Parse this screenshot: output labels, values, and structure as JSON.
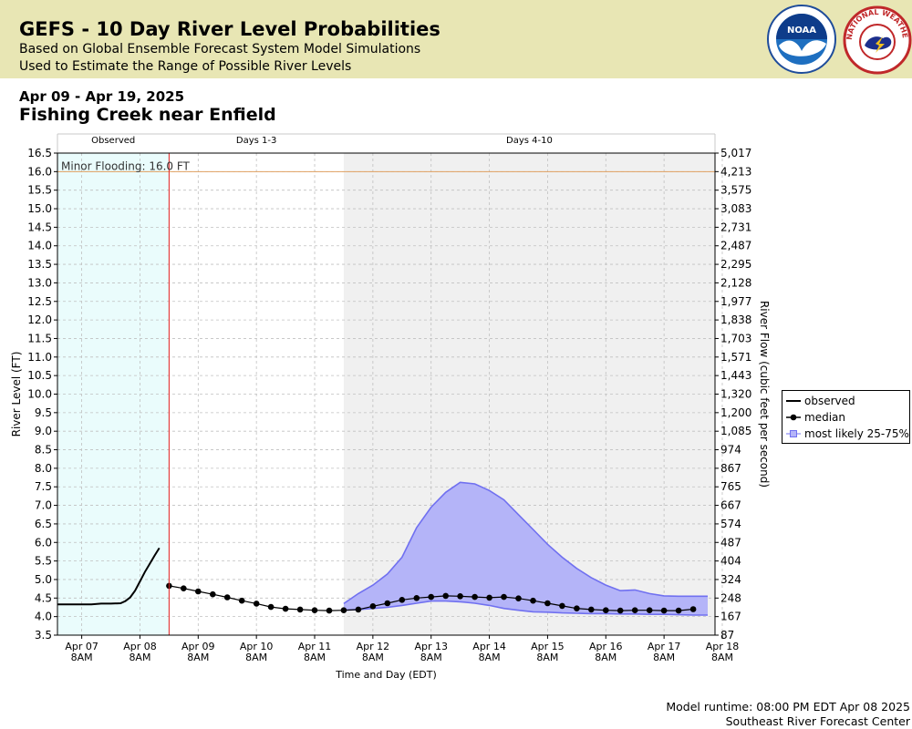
{
  "banner": {
    "title": "GEFS - 10 Day River Level Probabilities",
    "subtitle1": "Based on Global Ensemble Forecast System Model Simulations",
    "subtitle2": "Used to Estimate the Range of Possible River Levels",
    "noaa_logo_text": "NOAA",
    "nws_logo_text": "NATIONAL WEATHER SERVICE"
  },
  "date_range": "Apr 09 - Apr 19, 2025",
  "station": "Fishing Creek near Enfield",
  "legend": {
    "observed": "observed",
    "median": "median",
    "range": "most likely 25-75%"
  },
  "footer": {
    "runtime": "Model runtime: 08:00 PM EDT Apr 08 2025",
    "center": "Southeast River Forecast Center"
  },
  "colors": {
    "observed_bg": "#eafcfc",
    "days4_bg": "#f0f0f0",
    "flood_line": "#e0a060",
    "now_line": "#e02020",
    "band_fill": "#b4b4f8",
    "band_edge": "#7070f0",
    "line": "#000000"
  },
  "chart_data": {
    "type": "area",
    "xlabel": "Time and Day (EDT)",
    "ylabel": "River Level (FT)",
    "ylabel_right": "River Flow (cubic feet per second)",
    "ylim": [
      3.5,
      16.5
    ],
    "xlim": [
      "2025-04-06 22:00",
      "2025-04-18 05:00"
    ],
    "grid": true,
    "legend_position": "right",
    "regions": [
      {
        "label": "Observed",
        "start": "2025-04-06 22:00",
        "end": "2025-04-08 20:00"
      },
      {
        "label": "Days 1-3",
        "start": "2025-04-08 20:00",
        "end": "2025-04-11 20:00"
      },
      {
        "label": "Days 4-10",
        "start": "2025-04-11 20:00",
        "end": "2025-04-18 05:00"
      }
    ],
    "flood_stage": {
      "label": "Minor Flooding: 16.0 FT",
      "value": 16.0
    },
    "y_ticks": [
      3.5,
      4.0,
      4.5,
      5.0,
      5.5,
      6.0,
      6.5,
      7.0,
      7.5,
      8.0,
      8.5,
      9.0,
      9.5,
      10.0,
      10.5,
      11.0,
      11.5,
      12.0,
      12.5,
      13.0,
      13.5,
      14.0,
      14.5,
      15.0,
      15.5,
      16.0,
      16.5
    ],
    "right_ticks": [
      "87",
      "167",
      "248",
      "324",
      "404",
      "487",
      "574",
      "667",
      "765",
      "867",
      "974",
      "1,085",
      "1,200",
      "1,320",
      "1,443",
      "1,571",
      "1,703",
      "1,838",
      "1,977",
      "2,128",
      "2,295",
      "2,487",
      "2,731",
      "3,083",
      "3,575",
      "4,213",
      "5,017"
    ],
    "x_ticks": [
      {
        "t": "2025-04-07 08:00",
        "label1": "Apr 07",
        "label2": "8AM"
      },
      {
        "t": "2025-04-08 08:00",
        "label1": "Apr 08",
        "label2": "8AM"
      },
      {
        "t": "2025-04-09 08:00",
        "label1": "Apr 09",
        "label2": "8AM"
      },
      {
        "t": "2025-04-10 08:00",
        "label1": "Apr 10",
        "label2": "8AM"
      },
      {
        "t": "2025-04-11 08:00",
        "label1": "Apr 11",
        "label2": "8AM"
      },
      {
        "t": "2025-04-12 08:00",
        "label1": "Apr 12",
        "label2": "8AM"
      },
      {
        "t": "2025-04-13 08:00",
        "label1": "Apr 13",
        "label2": "8AM"
      },
      {
        "t": "2025-04-14 08:00",
        "label1": "Apr 14",
        "label2": "8AM"
      },
      {
        "t": "2025-04-15 08:00",
        "label1": "Apr 15",
        "label2": "8AM"
      },
      {
        "t": "2025-04-16 08:00",
        "label1": "Apr 16",
        "label2": "8AM"
      },
      {
        "t": "2025-04-17 08:00",
        "label1": "Apr 17",
        "label2": "8AM"
      },
      {
        "t": "2025-04-18 08:00",
        "label1": "Apr 18",
        "label2": "8AM"
      }
    ],
    "series": [
      {
        "name": "observed",
        "x": [
          "2025-04-06 22:00",
          "2025-04-07 08:00",
          "2025-04-07 12:00",
          "2025-04-07 16:00",
          "2025-04-07 20:00",
          "2025-04-08 00:00",
          "2025-04-08 02:00",
          "2025-04-08 04:00",
          "2025-04-08 06:00",
          "2025-04-08 08:00",
          "2025-04-08 10:00",
          "2025-04-08 12:00",
          "2025-04-08 14:00",
          "2025-04-08 16:00"
        ],
        "y": [
          4.33,
          4.33,
          4.33,
          4.35,
          4.35,
          4.36,
          4.42,
          4.52,
          4.7,
          4.95,
          5.2,
          5.42,
          5.64,
          5.85
        ]
      },
      {
        "name": "median",
        "x": [
          "2025-04-08 20:00",
          "2025-04-09 02:00",
          "2025-04-09 08:00",
          "2025-04-09 14:00",
          "2025-04-09 20:00",
          "2025-04-10 02:00",
          "2025-04-10 08:00",
          "2025-04-10 14:00",
          "2025-04-10 20:00",
          "2025-04-11 02:00",
          "2025-04-11 08:00",
          "2025-04-11 14:00",
          "2025-04-11 20:00",
          "2025-04-12 02:00",
          "2025-04-12 08:00",
          "2025-04-12 14:00",
          "2025-04-12 20:00",
          "2025-04-13 02:00",
          "2025-04-13 08:00",
          "2025-04-13 14:00",
          "2025-04-13 20:00",
          "2025-04-14 02:00",
          "2025-04-14 08:00",
          "2025-04-14 14:00",
          "2025-04-14 20:00",
          "2025-04-15 02:00",
          "2025-04-15 08:00",
          "2025-04-15 14:00",
          "2025-04-15 20:00",
          "2025-04-16 02:00",
          "2025-04-16 08:00",
          "2025-04-16 14:00",
          "2025-04-16 20:00",
          "2025-04-17 02:00",
          "2025-04-17 08:00",
          "2025-04-17 14:00",
          "2025-04-17 20:00"
        ],
        "y": [
          4.83,
          4.76,
          4.68,
          4.6,
          4.52,
          4.43,
          4.35,
          4.26,
          4.21,
          4.19,
          4.17,
          4.16,
          4.17,
          4.19,
          4.28,
          4.36,
          4.45,
          4.5,
          4.53,
          4.56,
          4.55,
          4.53,
          4.51,
          4.53,
          4.49,
          4.43,
          4.36,
          4.29,
          4.22,
          4.19,
          4.17,
          4.16,
          4.17,
          4.17,
          4.16,
          4.16,
          4.2
        ]
      },
      {
        "name": "most likely 25-75%",
        "x": [
          "2025-04-11 20:00",
          "2025-04-12 02:00",
          "2025-04-12 08:00",
          "2025-04-12 14:00",
          "2025-04-12 20:00",
          "2025-04-13 02:00",
          "2025-04-13 08:00",
          "2025-04-13 14:00",
          "2025-04-13 20:00",
          "2025-04-14 02:00",
          "2025-04-14 08:00",
          "2025-04-14 14:00",
          "2025-04-14 20:00",
          "2025-04-15 02:00",
          "2025-04-15 08:00",
          "2025-04-15 14:00",
          "2025-04-15 20:00",
          "2025-04-16 02:00",
          "2025-04-16 08:00",
          "2025-04-16 14:00",
          "2025-04-16 20:00",
          "2025-04-17 02:00",
          "2025-04-17 08:00",
          "2025-04-17 14:00",
          "2025-04-17 20:00",
          "2025-04-18 02:00"
        ],
        "low": [
          4.17,
          4.19,
          4.22,
          4.25,
          4.3,
          4.36,
          4.42,
          4.42,
          4.4,
          4.36,
          4.3,
          4.22,
          4.17,
          4.13,
          4.12,
          4.1,
          4.09,
          4.08,
          4.08,
          4.07,
          4.07,
          4.06,
          4.06,
          4.05,
          4.04,
          4.04
        ],
        "high": [
          4.35,
          4.62,
          4.85,
          5.15,
          5.6,
          6.4,
          6.95,
          7.35,
          7.62,
          7.58,
          7.4,
          7.15,
          6.75,
          6.35,
          5.95,
          5.6,
          5.3,
          5.05,
          4.85,
          4.7,
          4.72,
          4.62,
          4.56,
          4.55,
          4.55,
          4.55
        ]
      }
    ]
  }
}
